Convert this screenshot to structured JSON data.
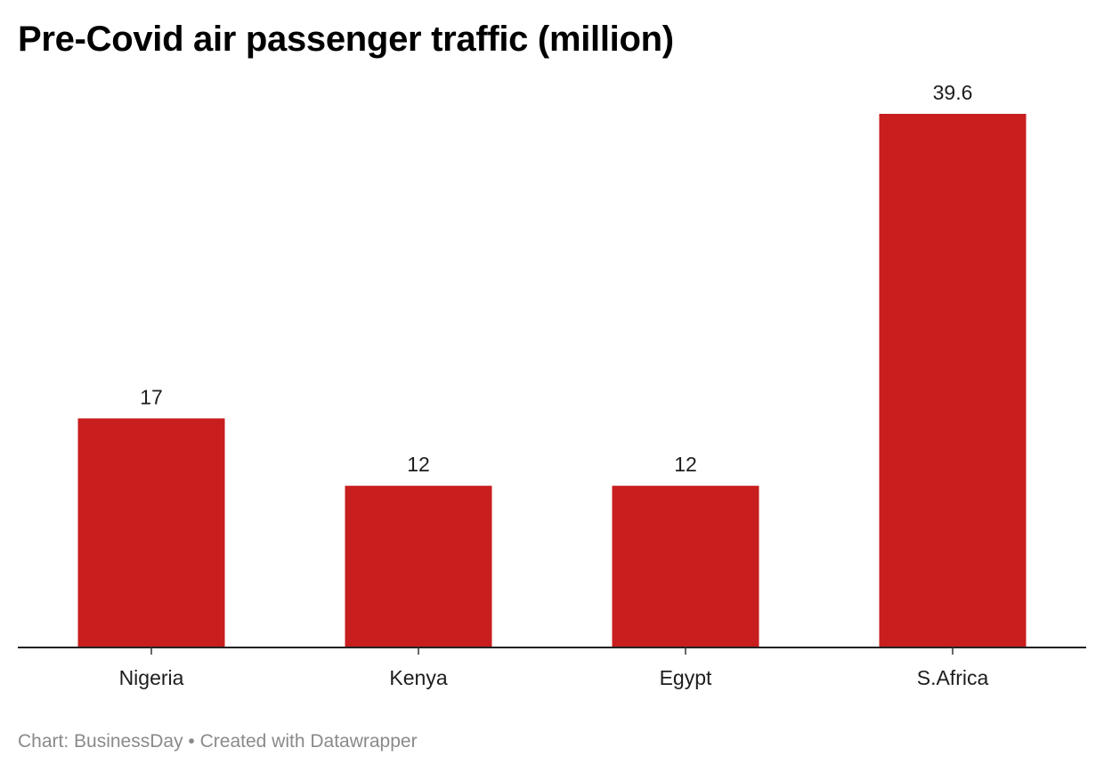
{
  "chart_data": {
    "type": "bar",
    "title": "Pre-Covid air passenger traffic (million)",
    "categories": [
      "Nigeria",
      "Kenya",
      "Egypt",
      "S.Africa"
    ],
    "values": [
      17,
      12,
      12,
      39.6
    ],
    "value_labels": [
      "17",
      "12",
      "12",
      "39.6"
    ],
    "xlabel": "",
    "ylabel": "",
    "ylim": [
      0,
      39.6
    ],
    "grid": false,
    "bar_color": "#c81e1e"
  },
  "footer": {
    "source_prefix": "Chart: ",
    "source": "BusinessDay",
    "separator": " • ",
    "credit": "Created with Datawrapper"
  }
}
